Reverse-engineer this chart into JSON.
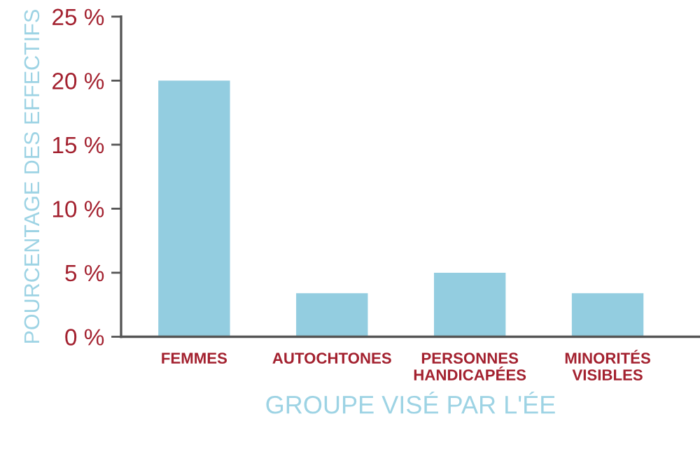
{
  "chart_data": {
    "type": "bar",
    "xlabel": "GROUPE VISÉ PAR L'ÉE",
    "ylabel": "POURCENTAGE DES EFFECTIFS",
    "categories": [
      "FEMMES",
      "AUTOCHTONES",
      "PERSONNES\nHANDICAPÉES",
      "MINORITÉS\nVISIBLES"
    ],
    "values": [
      20,
      3.4,
      5,
      3.4
    ],
    "color": "#93cde0",
    "ylim": [
      0,
      25
    ],
    "yticks": [
      {
        "value": 0,
        "label": "0 %"
      },
      {
        "value": 5,
        "label": "5 %"
      },
      {
        "value": 10,
        "label": "10 %"
      },
      {
        "value": 15,
        "label": "15 %"
      },
      {
        "value": 20,
        "label": "20 %"
      },
      {
        "value": 25,
        "label": "25 %"
      }
    ],
    "grid": false,
    "legend": false
  }
}
